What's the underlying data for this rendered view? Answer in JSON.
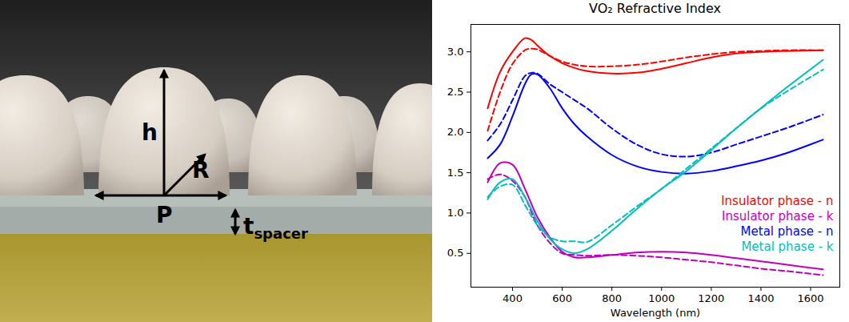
{
  "diagram": {
    "height_label": "h",
    "radius_label": "R",
    "period_label": "P",
    "spacer_label": "t",
    "spacer_label_subscript": "spacer"
  },
  "chart_data": {
    "type": "line",
    "title": "VO₂ Refractive Index",
    "x_label": "Wavelength (nm)",
    "x": [
      300,
      350,
      400,
      450,
      475,
      500,
      550,
      600,
      650,
      700,
      800,
      900,
      1000,
      1100,
      1200,
      1300,
      1400,
      1500,
      1650
    ],
    "xlim": [
      232.5,
      1717.5
    ],
    "xticks": [
      400,
      600,
      800,
      1000,
      1200,
      1400,
      1600
    ],
    "ylim": [
      0.08,
      3.34
    ],
    "yticks": [
      0.5,
      {
        "value": 1,
        "label": "1.0"
      },
      1.5,
      {
        "value": 2,
        "label": "2.0"
      },
      2.5,
      {
        "value": 3,
        "label": "3.0"
      }
    ],
    "grid": false,
    "legend": "lower right",
    "series": [
      {
        "name": "Insulator phase - n",
        "color": "#ff0000",
        "line_style": "solid",
        "values": [
          2.3,
          2.75,
          3.0,
          3.17,
          3.15,
          3.08,
          2.95,
          2.86,
          2.8,
          2.76,
          2.73,
          2.74,
          2.79,
          2.86,
          2.93,
          2.98,
          3.0,
          3.01,
          3.02
        ]
      },
      {
        "color": "#ff0000",
        "line_style": "dashed",
        "values": [
          2.02,
          2.5,
          2.85,
          3.02,
          3.04,
          3.03,
          2.95,
          2.88,
          2.84,
          2.82,
          2.82,
          2.84,
          2.88,
          2.93,
          2.97,
          3.0,
          3.01,
          3.02,
          3.02
        ]
      },
      {
        "name": "Insulator phase - k",
        "color": "#bf00bf",
        "line_style": "solid",
        "values": [
          1.38,
          1.62,
          1.6,
          1.3,
          1.12,
          0.95,
          0.7,
          0.52,
          0.45,
          0.45,
          0.48,
          0.51,
          0.52,
          0.51,
          0.48,
          0.44,
          0.4,
          0.36,
          0.3
        ]
      },
      {
        "color": "#bf00bf",
        "line_style": "dashed",
        "values": [
          1.42,
          1.48,
          1.4,
          1.2,
          1.02,
          0.85,
          0.63,
          0.5,
          0.48,
          0.47,
          0.48,
          0.47,
          0.45,
          0.42,
          0.39,
          0.35,
          0.31,
          0.28,
          0.23
        ]
      },
      {
        "name": "Metal phase - n",
        "color": "#0000ff",
        "line_style": "solid",
        "values": [
          1.68,
          1.85,
          2.2,
          2.6,
          2.72,
          2.72,
          2.55,
          2.3,
          2.1,
          1.95,
          1.72,
          1.58,
          1.51,
          1.49,
          1.52,
          1.58,
          1.65,
          1.74,
          1.91
        ]
      },
      {
        "color": "#0000ff",
        "line_style": "dashed",
        "values": [
          1.9,
          2.1,
          2.4,
          2.7,
          2.74,
          2.73,
          2.6,
          2.5,
          2.4,
          2.3,
          2.05,
          1.85,
          1.73,
          1.7,
          1.75,
          1.85,
          1.95,
          2.05,
          2.22
        ]
      },
      {
        "name": "Metal phase - k",
        "color": "#00bfbf",
        "line_style": "solid",
        "values": [
          1.17,
          1.38,
          1.42,
          1.2,
          1.05,
          0.9,
          0.68,
          0.55,
          0.5,
          0.55,
          0.78,
          1.05,
          1.3,
          1.52,
          1.78,
          2.05,
          2.3,
          2.55,
          2.9
        ]
      },
      {
        "color": "#00bfbf",
        "line_style": "dashed",
        "values": [
          1.2,
          1.33,
          1.35,
          1.1,
          0.97,
          0.85,
          0.7,
          0.65,
          0.65,
          0.64,
          0.85,
          1.08,
          1.3,
          1.55,
          1.8,
          2.05,
          2.3,
          2.5,
          2.78
        ]
      }
    ]
  }
}
